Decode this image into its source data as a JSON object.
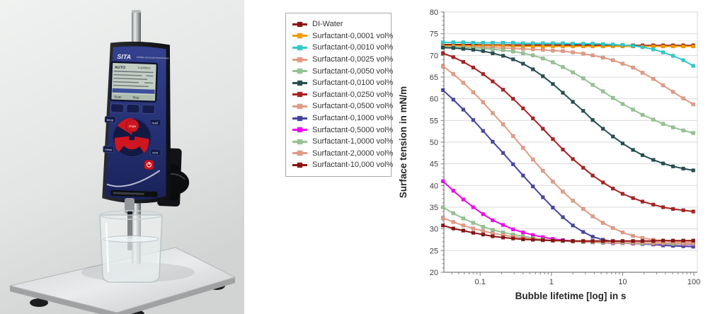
{
  "photo": {
    "brand": "SITA",
    "device_label": "bubble pressure tensiometer",
    "screen": {
      "mode": "AUTO",
      "status": "t=1000ms",
      "softkey_left": "Scan",
      "softkey_right": "Stop"
    },
    "buttons": {
      "center": "single",
      "left_top": "temp",
      "right_top": "read",
      "left_bottom": "mess",
      "right_bottom": "cont"
    }
  },
  "chart_data": {
    "type": "line",
    "title": "",
    "xlabel": "Bubble lifetime [log] in s",
    "ylabel": "Surface tension in mN/m",
    "x_scale": "log",
    "xlim": [
      0.031,
      112
    ],
    "ylim": [
      20,
      80
    ],
    "y_tick_step": 5,
    "x_tick_labels": [
      "0.1",
      "1",
      "10",
      "100"
    ],
    "x_tick_values": [
      0.1,
      1,
      10,
      100
    ],
    "grid": "horizontal",
    "legend_position": "outside-top-left",
    "colors": {
      "grid": "#d9d9d9",
      "axis": "#7f7f7f",
      "tick_text": "#404040",
      "title_text": "#262626"
    },
    "x": [
      0.03,
      0.042,
      0.058,
      0.08,
      0.11,
      0.15,
      0.21,
      0.29,
      0.4,
      0.55,
      0.76,
      1.05,
      1.45,
      2.0,
      2.8,
      3.8,
      5.3,
      7.3,
      10,
      14,
      19,
      27,
      37,
      51,
      71,
      98
    ],
    "series": [
      {
        "name": "DI-Water",
        "color": "#8b1413",
        "values": [
          72.5,
          72.5,
          72.5,
          72.5,
          72.4,
          72.4,
          72.4,
          72.4,
          72.4,
          72.4,
          72.4,
          72.4,
          72.4,
          72.4,
          72.4,
          72.4,
          72.3,
          72.3,
          72.3,
          72.3,
          72.3,
          72.3,
          72.3,
          72.3,
          72.3,
          72.3
        ]
      },
      {
        "name": "Surfactant-0,0001 vol%",
        "color": "#f59b00",
        "values": [
          72.2,
          72.2,
          72.2,
          72.2,
          72.2,
          72.2,
          72.2,
          72.1,
          72.1,
          72.1,
          72.1,
          72.1,
          72.1,
          72.1,
          72.1,
          72.1,
          72.1,
          72.1,
          72.1,
          72.1,
          72.1,
          72.1,
          72.1,
          72.1,
          72.1,
          72.1
        ]
      },
      {
        "name": "Surfactant-0,0010 vol%",
        "color": "#2fcccc",
        "values": [
          73.0,
          73.0,
          73.0,
          72.9,
          72.9,
          72.9,
          72.9,
          72.9,
          72.8,
          72.8,
          72.8,
          72.8,
          72.8,
          72.7,
          72.7,
          72.7,
          72.6,
          72.5,
          72.4,
          72.2,
          71.9,
          71.4,
          70.7,
          69.9,
          68.9,
          67.6
        ]
      },
      {
        "name": "Surfactant-0,0025 vol%",
        "color": "#e59b84",
        "values": [
          72.0,
          72.0,
          71.9,
          71.9,
          71.8,
          71.8,
          71.7,
          71.6,
          71.5,
          71.4,
          71.3,
          71.1,
          71.0,
          70.7,
          70.4,
          70.0,
          69.5,
          68.9,
          68.1,
          67.2,
          66.0,
          64.6,
          63.1,
          61.6,
          60.1,
          58.7
        ]
      },
      {
        "name": "Surfactant-0,0050 vol%",
        "color": "#96c493",
        "values": [
          71.9,
          71.9,
          71.8,
          71.7,
          71.6,
          71.4,
          71.2,
          70.9,
          70.5,
          70.0,
          69.3,
          68.4,
          67.3,
          66.1,
          64.7,
          63.2,
          61.7,
          60.2,
          58.8,
          57.5,
          56.3,
          55.2,
          54.2,
          53.4,
          52.7,
          52.1
        ]
      },
      {
        "name": "Surfactant-0,0100 vol%",
        "color": "#264f4f",
        "values": [
          71.8,
          71.7,
          71.5,
          71.3,
          71.0,
          70.5,
          69.9,
          69.1,
          68.1,
          66.8,
          65.2,
          63.4,
          61.4,
          59.3,
          57.2,
          55.1,
          53.1,
          51.3,
          49.7,
          48.2,
          47.0,
          45.9,
          45.1,
          44.4,
          43.9,
          43.5
        ]
      },
      {
        "name": "Surfactant-0,0250 vol%",
        "color": "#aa2222",
        "values": [
          70.5,
          69.6,
          68.5,
          67.2,
          65.7,
          64.0,
          62.1,
          60.0,
          57.8,
          55.5,
          53.1,
          50.7,
          48.3,
          46.1,
          44.1,
          42.3,
          40.7,
          39.3,
          38.1,
          37.1,
          36.3,
          35.6,
          35.0,
          34.6,
          34.3,
          34.0
        ]
      },
      {
        "name": "Surfactant-0,0500 vol%",
        "color": "#e59b84",
        "values": [
          67.5,
          65.7,
          63.7,
          61.5,
          59.2,
          56.7,
          54.1,
          51.4,
          48.7,
          46.0,
          43.4,
          40.9,
          38.6,
          36.5,
          34.6,
          32.9,
          31.4,
          30.2,
          29.2,
          28.4,
          27.9,
          27.5,
          27.3,
          27.1,
          27.0,
          26.9
        ]
      },
      {
        "name": "Surfactant-0,1000 vol%",
        "color": "#4646a0",
        "values": [
          62.0,
          59.8,
          57.5,
          55.1,
          52.6,
          50.1,
          47.5,
          44.9,
          42.3,
          39.8,
          37.3,
          34.9,
          32.7,
          30.8,
          29.3,
          28.2,
          27.5,
          27.1,
          26.9,
          26.7,
          26.5,
          26.4,
          26.2,
          26.1,
          26.0,
          25.9
        ]
      },
      {
        "name": "Surfactant-0,5000 vol%",
        "color": "#f400f4",
        "values": [
          41.0,
          38.8,
          36.8,
          35.0,
          33.4,
          32.0,
          30.9,
          29.9,
          29.2,
          28.6,
          28.1,
          27.7,
          27.4,
          27.2,
          27.0,
          26.9,
          26.8,
          26.7,
          26.7,
          26.6,
          26.6,
          26.5,
          26.5,
          26.5,
          26.4,
          26.4
        ]
      },
      {
        "name": "Surfactant-1,0000 vol%",
        "color": "#96c493",
        "values": [
          35.0,
          33.6,
          32.4,
          31.4,
          30.5,
          29.8,
          29.2,
          28.7,
          28.3,
          27.9,
          27.6,
          27.4,
          27.2,
          27.1,
          27.0,
          26.9,
          26.8,
          26.8,
          26.7,
          26.7,
          26.6,
          26.6,
          26.6,
          26.5,
          26.5,
          26.5
        ]
      },
      {
        "name": "Surfactant-2,0000 vol%",
        "color": "#e59b84",
        "values": [
          32.5,
          31.6,
          30.8,
          30.1,
          29.5,
          29.0,
          28.6,
          28.2,
          27.9,
          27.7,
          27.5,
          27.4,
          27.2,
          27.1,
          27.1,
          27.0,
          27.0,
          26.9,
          26.9,
          26.9,
          26.8,
          26.8,
          26.8,
          26.8,
          26.7,
          26.7
        ]
      },
      {
        "name": "Surfactant-10,000 vol%",
        "color": "#8b1413",
        "values": [
          30.8,
          30.1,
          29.6,
          29.1,
          28.7,
          28.3,
          28.0,
          27.8,
          27.6,
          27.5,
          27.4,
          27.3,
          27.3,
          27.2,
          27.2,
          27.2,
          27.2,
          27.2,
          27.2,
          27.2,
          27.2,
          27.2,
          27.3,
          27.3,
          27.3,
          27.3
        ]
      }
    ]
  }
}
